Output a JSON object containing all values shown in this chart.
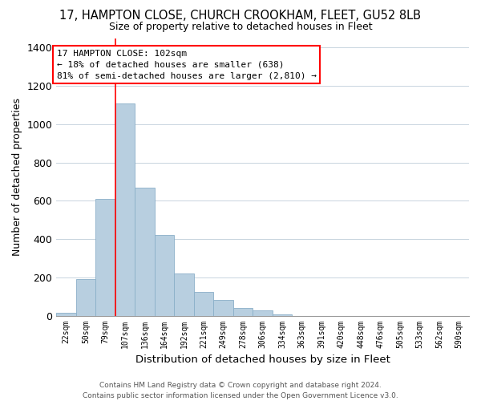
{
  "title": "17, HAMPTON CLOSE, CHURCH CROOKHAM, FLEET, GU52 8LB",
  "subtitle": "Size of property relative to detached houses in Fleet",
  "xlabel": "Distribution of detached houses by size in Fleet",
  "ylabel": "Number of detached properties",
  "bar_color": "#b8cfe0",
  "bar_edge_color": "#8aafc8",
  "bin_labels": [
    "22sqm",
    "50sqm",
    "79sqm",
    "107sqm",
    "136sqm",
    "164sqm",
    "192sqm",
    "221sqm",
    "249sqm",
    "278sqm",
    "306sqm",
    "334sqm",
    "363sqm",
    "391sqm",
    "420sqm",
    "448sqm",
    "476sqm",
    "505sqm",
    "533sqm",
    "562sqm",
    "590sqm"
  ],
  "bar_heights": [
    15,
    190,
    610,
    1110,
    670,
    420,
    220,
    125,
    80,
    40,
    28,
    5,
    0,
    0,
    0,
    0,
    0,
    0,
    0,
    0,
    0
  ],
  "ylim": [
    0,
    1450
  ],
  "yticks": [
    0,
    200,
    400,
    600,
    800,
    1000,
    1200,
    1400
  ],
  "property_line_label": "17 HAMPTON CLOSE: 102sqm",
  "annotation_smaller": "← 18% of detached houses are smaller (638)",
  "annotation_larger": "81% of semi-detached houses are larger (2,810) →",
  "footer_line1": "Contains HM Land Registry data © Crown copyright and database right 2024.",
  "footer_line2": "Contains public sector information licensed under the Open Government Licence v3.0.",
  "background_color": "#ffffff",
  "grid_color": "#c8d4de"
}
